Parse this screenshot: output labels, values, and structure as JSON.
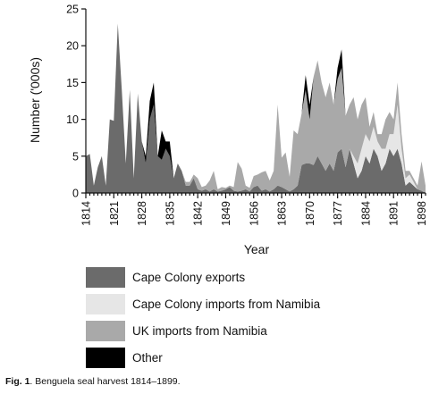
{
  "chart_data": {
    "type": "area",
    "stacked": true,
    "title": "",
    "xlabel": "Year",
    "ylabel": "Number ('000s)",
    "xlim": [
      1814,
      1899
    ],
    "ylim": [
      0,
      25
    ],
    "yticks": [
      0,
      5,
      10,
      15,
      20,
      25
    ],
    "xticks": [
      1814,
      1821,
      1828,
      1835,
      1842,
      1849,
      1856,
      1863,
      1870,
      1877,
      1884,
      1891,
      1898
    ],
    "x": [
      1814,
      1815,
      1816,
      1817,
      1818,
      1819,
      1820,
      1821,
      1822,
      1823,
      1824,
      1825,
      1826,
      1827,
      1828,
      1829,
      1830,
      1831,
      1832,
      1833,
      1834,
      1835,
      1836,
      1837,
      1838,
      1839,
      1840,
      1841,
      1842,
      1843,
      1844,
      1845,
      1846,
      1847,
      1848,
      1849,
      1850,
      1851,
      1852,
      1853,
      1854,
      1855,
      1856,
      1857,
      1858,
      1859,
      1860,
      1861,
      1862,
      1863,
      1864,
      1865,
      1866,
      1867,
      1868,
      1869,
      1870,
      1871,
      1872,
      1873,
      1874,
      1875,
      1876,
      1877,
      1878,
      1879,
      1880,
      1881,
      1882,
      1883,
      1884,
      1885,
      1886,
      1887,
      1888,
      1889,
      1890,
      1891,
      1892,
      1893,
      1894,
      1895,
      1896,
      1897,
      1898,
      1899
    ],
    "series": [
      {
        "name": "Cape Colony exports",
        "color": "#6b6b6b",
        "values": [
          5,
          5.3,
          1,
          3.5,
          5,
          1,
          10,
          9.8,
          23,
          14,
          4,
          14,
          2,
          13.5,
          7,
          4,
          10,
          12,
          5,
          4.5,
          6,
          5,
          2,
          4,
          3,
          1,
          1,
          2,
          0.5,
          0.3,
          0.5,
          0.2,
          0.5,
          0.2,
          0.3,
          0.5,
          0.8,
          0.3,
          0.2,
          0.3,
          0.5,
          0.2,
          0.8,
          1,
          0.3,
          0.5,
          0.2,
          0.5,
          1,
          0.8,
          0.5,
          0.2,
          0.5,
          1,
          3.8,
          4,
          4,
          3.8,
          5,
          4,
          3,
          4,
          3,
          5.5,
          6,
          3.5,
          6,
          4,
          2,
          3,
          5,
          4,
          6,
          5,
          3,
          4,
          6,
          5,
          6,
          4,
          1,
          1.5,
          1,
          0.5,
          0.3,
          0
        ]
      },
      {
        "name": "Cape Colony imports from Namibia",
        "color": "#e6e6e6",
        "values": [
          0,
          0,
          0,
          0,
          0,
          0,
          0,
          0,
          0,
          0,
          0,
          0,
          0,
          0,
          0,
          0,
          0,
          0,
          0,
          0,
          0,
          0,
          0,
          0,
          0,
          0,
          0,
          0,
          0,
          0,
          0,
          0,
          0,
          0,
          0,
          0,
          0,
          0,
          0,
          0,
          0,
          0,
          0,
          0,
          0,
          0,
          0,
          0,
          0,
          0,
          0,
          0,
          0,
          0,
          0,
          0,
          0,
          0,
          0,
          0,
          0,
          0,
          0,
          0,
          0,
          0,
          0,
          1,
          2,
          3,
          3,
          3,
          3,
          2,
          3,
          2,
          2,
          3,
          6,
          2,
          1,
          1,
          0.5,
          0,
          0,
          0
        ]
      },
      {
        "name": "UK imports from Namibia",
        "color": "#a9a9a9",
        "values": [
          0,
          0,
          0,
          0,
          0,
          0,
          0,
          0,
          0,
          0,
          0,
          0,
          0,
          0,
          0,
          0,
          0,
          0,
          0,
          0,
          0,
          0,
          0,
          0,
          0,
          0.5,
          0.5,
          0.5,
          1.5,
          0.5,
          0.5,
          1.5,
          2.5,
          0.3,
          0.5,
          0.2,
          0.2,
          0.5,
          4,
          3,
          0.5,
          0.5,
          1.5,
          1.5,
          2.5,
          2.5,
          1.5,
          2.5,
          11,
          4,
          5,
          2,
          8,
          7,
          7,
          10,
          6,
          12,
          13,
          11,
          10,
          11,
          9,
          10,
          11,
          7,
          6,
          8,
          6,
          6,
          5,
          2,
          2,
          1,
          2,
          4,
          3,
          2,
          3,
          2,
          1,
          0.5,
          0.5,
          0.5,
          4,
          1
        ]
      },
      {
        "name": "Other",
        "color": "#000000",
        "values": [
          0,
          0,
          0,
          0,
          0,
          0,
          0,
          0,
          0,
          0,
          0,
          0,
          0,
          0,
          0,
          1,
          2.5,
          3,
          0,
          4,
          1,
          2,
          0,
          0,
          0,
          0,
          0,
          0,
          0,
          0,
          0,
          0,
          0,
          0,
          0,
          0,
          0,
          0,
          0,
          0,
          0,
          0,
          0,
          0,
          0,
          0,
          0,
          0,
          0,
          0,
          0,
          0,
          0,
          0,
          0,
          2,
          2,
          0,
          0,
          0,
          0,
          0,
          0,
          1.5,
          2.5,
          0,
          0,
          0,
          0,
          0,
          0,
          0,
          0,
          0,
          0,
          0,
          0,
          0,
          0,
          0,
          0,
          0,
          0,
          0,
          0,
          0
        ]
      }
    ],
    "legend_position": "bottom",
    "grid": false
  },
  "caption": {
    "label": "Fig. 1",
    "text": ". Benguela seal harvest 1814–1899."
  }
}
